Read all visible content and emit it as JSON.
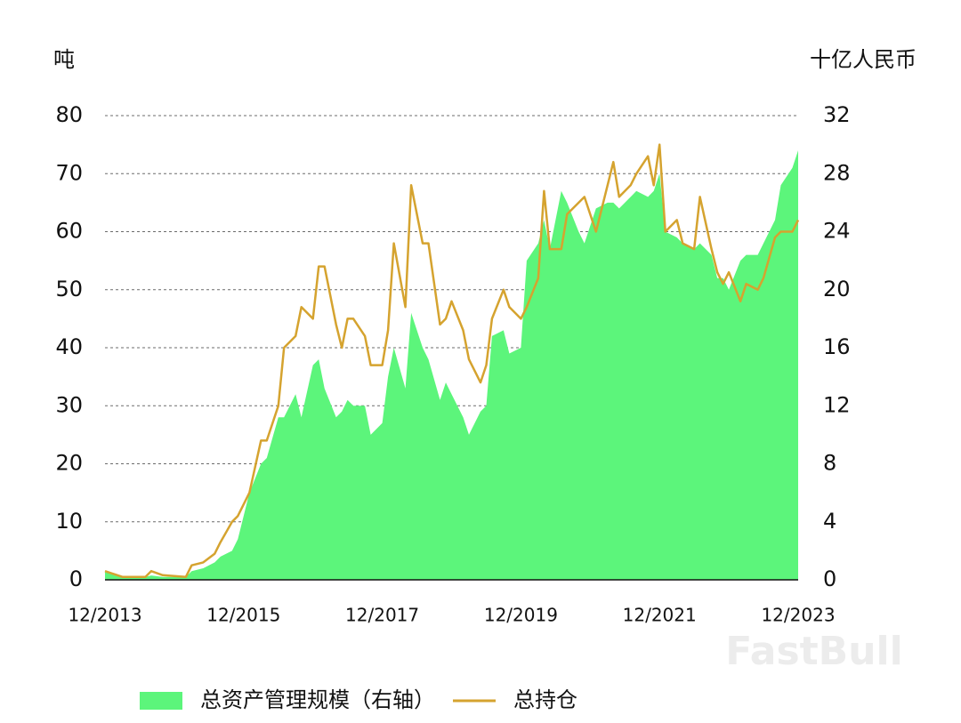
{
  "chart_data": {
    "type": "combo",
    "y_label": "吨",
    "y2_label": "十亿人民币",
    "watermark": "FastBull",
    "ylim": [
      0,
      80
    ],
    "yticks": [
      0,
      10,
      20,
      30,
      40,
      50,
      60,
      70,
      80
    ],
    "y2lim": [
      0,
      32
    ],
    "y2ticks": [
      0,
      4,
      8,
      12,
      16,
      20,
      24,
      28,
      32
    ],
    "xlim": [
      "12/2013",
      "12/2023"
    ],
    "xticks": [
      "12/2013",
      "12/2015",
      "12/2017",
      "12/2019",
      "12/2021",
      "12/2023"
    ],
    "grid": true,
    "x": [
      "12/2013",
      "03/2014",
      "07/2014",
      "08/2014",
      "10/2014",
      "02/2015",
      "03/2015",
      "05/2015",
      "07/2015",
      "08/2015",
      "10/2015",
      "11/2015",
      "01/2016",
      "03/2016",
      "04/2016",
      "06/2016",
      "07/2016",
      "09/2016",
      "10/2016",
      "12/2016",
      "01/2017",
      "02/2017",
      "04/2017",
      "05/2017",
      "06/2017",
      "07/2017",
      "09/2017",
      "10/2017",
      "12/2017",
      "01/2018",
      "02/2018",
      "04/2018",
      "05/2018",
      "07/2018",
      "08/2018",
      "10/2018",
      "11/2018",
      "12/2018",
      "02/2019",
      "03/2019",
      "05/2019",
      "06/2019",
      "07/2019",
      "09/2019",
      "10/2019",
      "12/2019",
      "01/2020",
      "03/2020",
      "04/2020",
      "05/2020",
      "07/2020",
      "08/2020",
      "10/2020",
      "11/2020",
      "01/2021",
      "03/2021",
      "04/2021",
      "05/2021",
      "07/2021",
      "08/2021",
      "10/2021",
      "11/2021",
      "12/2021",
      "01/2022",
      "03/2022",
      "04/2022",
      "06/2022",
      "07/2022",
      "09/2022",
      "10/2022",
      "11/2022",
      "12/2022",
      "02/2023",
      "03/2023",
      "05/2023",
      "06/2023",
      "08/2023",
      "09/2023",
      "11/2023",
      "12/2023"
    ],
    "series": [
      {
        "name": "总资产管理规模（右轴）",
        "type": "area",
        "axis": "y2",
        "color": "#5cf57b",
        "values": [
          0.6,
          0.2,
          0.2,
          0.3,
          0.2,
          0.2,
          0.6,
          0.8,
          1.2,
          1.6,
          2.0,
          2.8,
          6.0,
          8.0,
          8.4,
          11.2,
          11.2,
          12.8,
          11.2,
          14.8,
          15.2,
          13.2,
          11.2,
          11.6,
          12.4,
          12.0,
          12.0,
          10.0,
          10.8,
          14.0,
          16.0,
          13.2,
          18.4,
          16.0,
          15.2,
          12.4,
          13.6,
          12.8,
          11.2,
          10.0,
          11.6,
          12.0,
          16.8,
          17.2,
          15.6,
          16.0,
          22.0,
          23.2,
          24.8,
          22.8,
          26.8,
          26.0,
          24.0,
          23.2,
          25.6,
          26.0,
          26.0,
          25.6,
          26.4,
          26.8,
          26.4,
          26.8,
          28.0,
          24.0,
          23.6,
          23.2,
          22.8,
          23.2,
          22.4,
          20.8,
          20.8,
          20.0,
          22.0,
          22.4,
          22.4,
          23.2,
          24.8,
          27.2,
          28.4,
          29.6
        ]
      },
      {
        "name": "总持仓",
        "type": "line",
        "color": "#d5a32f",
        "values": [
          1.5,
          0.5,
          0.5,
          1.5,
          0.8,
          0.5,
          2.5,
          3,
          4.5,
          6.5,
          10,
          11,
          15,
          24,
          24,
          30,
          40,
          42,
          47,
          45,
          54,
          54,
          44,
          40,
          45,
          45,
          42,
          37,
          37,
          43,
          58,
          47,
          68,
          58,
          58,
          44,
          45,
          48,
          43,
          38,
          34,
          37,
          45,
          50,
          47,
          45,
          47,
          52,
          67,
          57,
          57,
          63,
          65,
          66,
          60,
          68,
          72,
          66,
          68,
          70,
          73,
          68,
          75,
          60,
          62,
          58,
          57,
          66,
          57,
          53,
          51,
          53,
          48,
          51,
          50,
          52,
          59,
          60,
          60,
          62
        ]
      }
    ]
  }
}
